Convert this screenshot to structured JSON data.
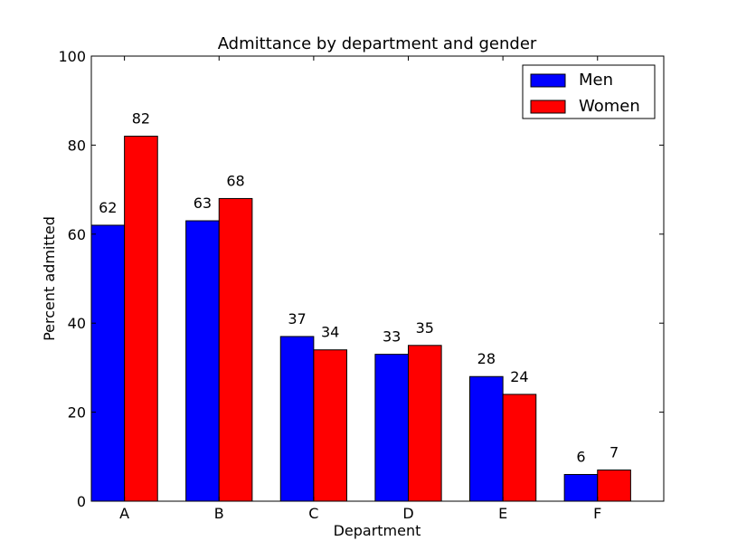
{
  "chart_data": {
    "type": "bar",
    "title": "Admittance by department and gender",
    "xlabel": "Department",
    "ylabel": "Percent admitted",
    "categories": [
      "A",
      "B",
      "C",
      "D",
      "E",
      "F"
    ],
    "series": [
      {
        "name": "Men",
        "color": "#0000ff",
        "values": [
          62,
          63,
          37,
          33,
          28,
          6
        ]
      },
      {
        "name": "Women",
        "color": "#ff0000",
        "values": [
          82,
          68,
          34,
          35,
          24,
          7
        ]
      }
    ],
    "ylim": [
      0,
      100
    ],
    "yticks": [
      0,
      20,
      40,
      60,
      80,
      100
    ],
    "ytick_labels": [
      "0",
      "20",
      "40",
      "60",
      "80",
      "100"
    ],
    "grid": false,
    "legend": "top-right"
  }
}
